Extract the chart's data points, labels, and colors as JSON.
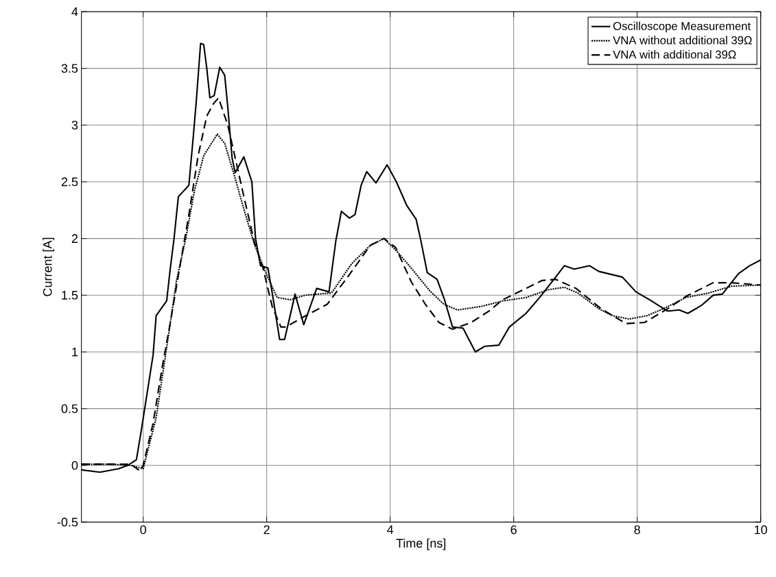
{
  "chart_data": {
    "type": "line",
    "xlabel": "Time [ns]",
    "ylabel": "Current [A]",
    "xlim": [
      -1,
      10
    ],
    "ylim": [
      -0.5,
      4
    ],
    "xticks": [
      0,
      2,
      4,
      6,
      8,
      10
    ],
    "yticks": [
      -0.5,
      0,
      0.5,
      1,
      1.5,
      2,
      2.5,
      3,
      3.5,
      4
    ],
    "grid": true,
    "legend": "top right",
    "series": [
      {
        "name": "Oscilloscope Measurement",
        "color": "#000000",
        "line_style": "solid",
        "x": [
          -1,
          -0.7,
          -0.4,
          -0.25,
          -0.11,
          -0.03,
          0.16,
          0.21,
          0.38,
          0.44,
          0.5,
          0.57,
          0.64,
          0.74,
          0.81,
          0.86,
          0.93,
          0.98,
          1.03,
          1.08,
          1.15,
          1.24,
          1.32,
          1.37,
          1.44,
          1.49,
          1.63,
          1.76,
          1.82,
          1.9,
          2.02,
          2.09,
          2.21,
          2.29,
          2.38,
          2.46,
          2.6,
          2.81,
          3.01,
          3.12,
          3.21,
          3.34,
          3.43,
          3.53,
          3.62,
          3.77,
          3.95,
          4.1,
          4.27,
          4.42,
          4.49,
          4.6,
          4.76,
          4.88,
          5.01,
          5.18,
          5.38,
          5.53,
          5.76,
          5.93,
          6.2,
          6.42,
          6.68,
          6.82,
          6.98,
          7.23,
          7.38,
          7.76,
          7.98,
          8.2,
          8.49,
          8.68,
          8.82,
          9.04,
          9.23,
          9.38,
          9.64,
          9.82,
          10
        ],
        "values": [
          -0.04,
          -0.06,
          -0.03,
          0,
          0.05,
          0.31,
          0.97,
          1.32,
          1.45,
          1.74,
          2.0,
          2.37,
          2.41,
          2.47,
          2.89,
          3.21,
          3.72,
          3.71,
          3.5,
          3.24,
          3.26,
          3.51,
          3.44,
          3.16,
          2.71,
          2.58,
          2.72,
          2.5,
          2.0,
          1.76,
          1.74,
          1.52,
          1.11,
          1.11,
          1.32,
          1.51,
          1.24,
          1.56,
          1.53,
          1.98,
          2.24,
          2.18,
          2.21,
          2.47,
          2.59,
          2.49,
          2.65,
          2.5,
          2.29,
          2.17,
          2.0,
          1.7,
          1.64,
          1.46,
          1.22,
          1.21,
          1.0,
          1.05,
          1.06,
          1.22,
          1.34,
          1.48,
          1.66,
          1.76,
          1.73,
          1.76,
          1.71,
          1.66,
          1.53,
          1.46,
          1.36,
          1.37,
          1.34,
          1.41,
          1.5,
          1.51,
          1.69,
          1.76,
          1.81
        ]
      },
      {
        "name": "VNA without additional 39Ω",
        "color": "#000000",
        "line_style": "dotted",
        "x": [
          -1,
          -0.5,
          -0.2,
          0,
          0.21,
          0.4,
          0.54,
          0.69,
          0.83,
          0.98,
          1.2,
          1.32,
          1.49,
          1.63,
          1.8,
          2.0,
          2.17,
          2.38,
          2.62,
          3.05,
          3.38,
          3.68,
          3.9,
          4.12,
          4.34,
          4.64,
          4.87,
          5.09,
          5.46,
          5.83,
          6.2,
          6.57,
          6.82,
          7.04,
          7.38,
          7.6,
          7.87,
          8.16,
          8.42,
          8.79,
          9.16,
          9.53,
          10
        ],
        "values": [
          0.01,
          0.01,
          0.0,
          -0.03,
          0.42,
          1.11,
          1.63,
          2.0,
          2.42,
          2.73,
          2.92,
          2.84,
          2.53,
          2.26,
          1.95,
          1.68,
          1.48,
          1.46,
          1.5,
          1.52,
          1.78,
          1.94,
          2.0,
          1.88,
          1.74,
          1.54,
          1.42,
          1.37,
          1.4,
          1.45,
          1.48,
          1.55,
          1.57,
          1.52,
          1.38,
          1.32,
          1.29,
          1.32,
          1.38,
          1.48,
          1.52,
          1.58,
          1.59
        ]
      },
      {
        "name": "VNA with additional 39Ω",
        "color": "#000000",
        "line_style": "dashed",
        "x": [
          -1,
          -0.5,
          -0.2,
          -0.05,
          0,
          0.16,
          0.3,
          0.44,
          0.59,
          0.74,
          0.89,
          1.03,
          1.14,
          1.22,
          1.37,
          1.47,
          1.61,
          1.8,
          1.94,
          2.09,
          2.23,
          2.31,
          2.6,
          2.98,
          3.31,
          3.68,
          3.9,
          4.09,
          4.34,
          4.57,
          4.79,
          5.01,
          5.31,
          5.6,
          5.82,
          6.2,
          6.46,
          6.68,
          7.01,
          7.42,
          7.82,
          8.12,
          8.49,
          8.79,
          9.23,
          9.53,
          10
        ],
        "values": [
          0.01,
          0.01,
          0.01,
          -0.05,
          0.0,
          0.37,
          0.84,
          1.26,
          1.74,
          2.21,
          2.73,
          3.08,
          3.19,
          3.24,
          3.0,
          2.76,
          2.42,
          1.97,
          1.74,
          1.4,
          1.22,
          1.22,
          1.31,
          1.42,
          1.66,
          1.94,
          2.0,
          1.92,
          1.62,
          1.42,
          1.26,
          1.2,
          1.26,
          1.36,
          1.46,
          1.56,
          1.63,
          1.64,
          1.56,
          1.38,
          1.25,
          1.26,
          1.38,
          1.49,
          1.61,
          1.61,
          1.59
        ]
      }
    ]
  }
}
